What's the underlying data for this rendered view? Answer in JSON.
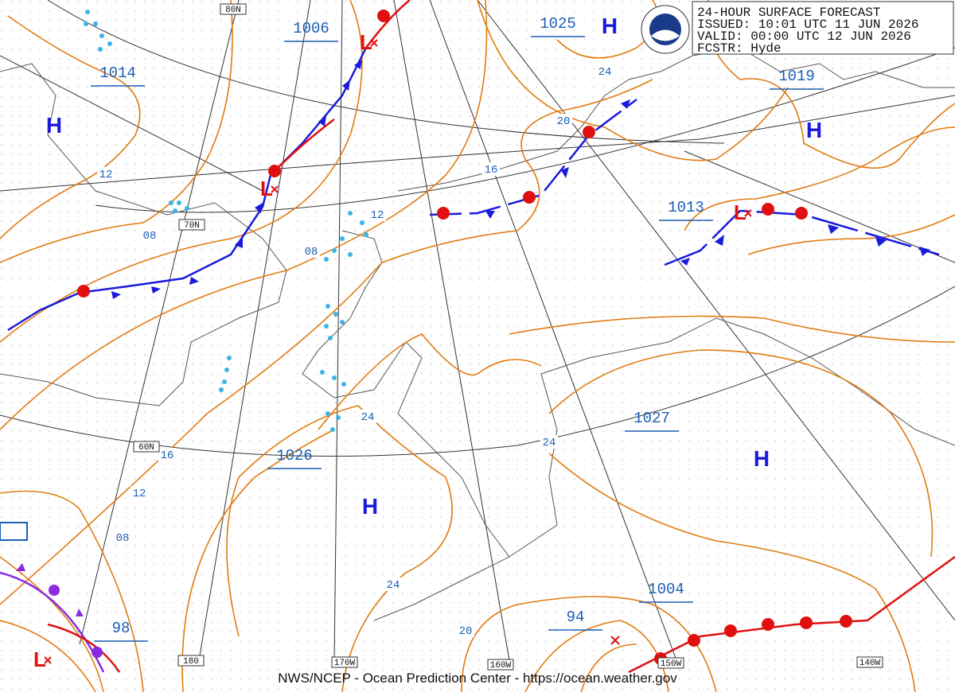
{
  "header": {
    "title": "24-HOUR SURFACE FORECAST",
    "issued": "ISSUED: 10:01 UTC 11 JUN 2026",
    "valid": "VALID:  00:00 UTC 12 JUN 2026",
    "forecaster": "FCSTR:  Hyde"
  },
  "footer": "NWS/NCEP - Ocean Prediction Center - https://ocean.weather.gov",
  "pressure_labels": [
    "1006",
    "1025",
    "1014",
    "1019",
    "1013",
    "1027",
    "1026",
    "1004",
    "94",
    "98"
  ],
  "isobar_labels": [
    "24",
    "20",
    "16",
    "12",
    "08",
    "12",
    "08",
    "24",
    "24",
    "16",
    "12",
    "08",
    "24",
    "20"
  ],
  "grid_labels": [
    "80N",
    "70N",
    "60N",
    "180",
    "170W",
    "160W",
    "150W",
    "140W"
  ],
  "highs": [
    "H",
    "H",
    "H",
    "H",
    "H"
  ],
  "lows": [
    "L",
    "L",
    "L",
    "L"
  ]
}
